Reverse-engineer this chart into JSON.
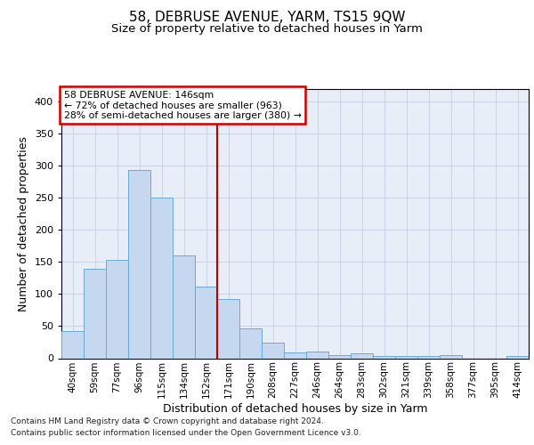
{
  "title": "58, DEBRUSE AVENUE, YARM, TS15 9QW",
  "subtitle": "Size of property relative to detached houses in Yarm",
  "xlabel": "Distribution of detached houses by size in Yarm",
  "ylabel": "Number of detached properties",
  "bar_values": [
    42,
    140,
    154,
    293,
    251,
    160,
    112,
    92,
    46,
    24,
    9,
    11,
    5,
    8,
    3,
    4,
    3,
    5,
    0,
    0,
    3
  ],
  "categories": [
    "40sqm",
    "59sqm",
    "77sqm",
    "96sqm",
    "115sqm",
    "134sqm",
    "152sqm",
    "171sqm",
    "190sqm",
    "208sqm",
    "227sqm",
    "246sqm",
    "264sqm",
    "283sqm",
    "302sqm",
    "321sqm",
    "339sqm",
    "358sqm",
    "377sqm",
    "395sqm",
    "414sqm"
  ],
  "bar_color": "#c5d8f0",
  "bar_edge_color": "#6aaad4",
  "grid_color": "#c8d4e4",
  "background_color": "#e8eef8",
  "annotation_line1": "58 DEBRUSE AVENUE: 146sqm",
  "annotation_line2": "← 72% of detached houses are smaller (963)",
  "annotation_line3": "28% of semi-detached houses are larger (380) →",
  "vline_x": 6.5,
  "vline_color": "#bb0000",
  "ylim": [
    0,
    420
  ],
  "footer_line1": "Contains HM Land Registry data © Crown copyright and database right 2024.",
  "footer_line2": "Contains public sector information licensed under the Open Government Licence v3.0."
}
